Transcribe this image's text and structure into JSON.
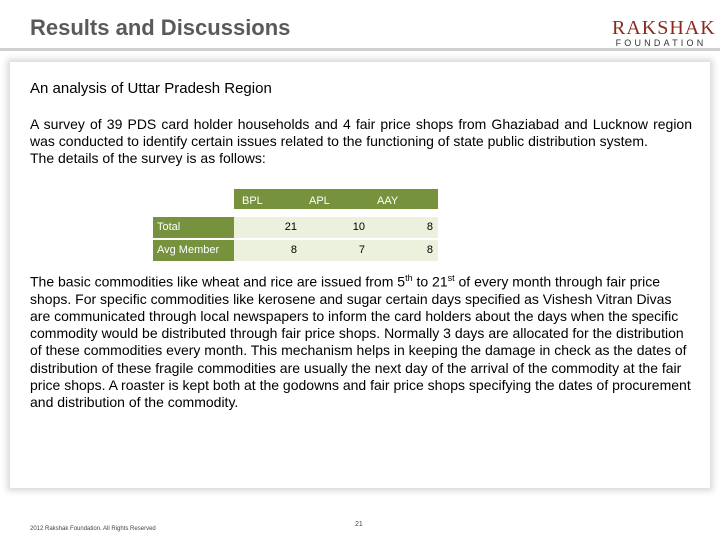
{
  "header": {
    "title": "Results and Discussions",
    "logo_main": "RAKSHAK",
    "logo_sub": "FOUNDATION"
  },
  "content": {
    "subtitle": "An analysis of Uttar Pradesh Region",
    "para1_line1": "A survey of 39 PDS card holder households and 4 fair price shops from Ghaziabad and Lucknow region was conducted to identify certain issues related to the functioning of state public distribution system.",
    "para1_line2": "The details of the survey is as follows:",
    "table": {
      "headers": [
        "BPL",
        "APL",
        "AAY"
      ],
      "rows": [
        {
          "label": "Total",
          "values": [
            "21",
            "10",
            "8"
          ]
        },
        {
          "label": "Avg Member",
          "values": [
            "8",
            "7",
            "8"
          ]
        }
      ]
    },
    "para2": {
      "t1": "The basic commodities like wheat and rice are issued from 5",
      "sup1": "th",
      "t2": " to 21",
      "sup2": "st",
      "t3": " of every month through fair price shops. For specific commodities like kerosene and sugar certain days specified as Vishesh Vitran Divas are communicated through local newspapers to inform the card holders about the days when the specific commodity would be distributed through fair price shops. Normally 3 days are allocated for the distribution of these commodities every month. This mechanism helps in keeping the damage in check as the dates of distribution of these fragile commodities are usually the next day of the arrival of the commodity at the fair price shops. A roaster is kept both at the godowns and fair price shops specifying the dates of procurement and distribution of the commodity."
    }
  },
  "footer": {
    "copyright": "2012 Rakshak Foundation. All Rights Reserved",
    "page_number": "21"
  },
  "colors": {
    "table_header": "#76923c",
    "table_body": "#ebf1dd",
    "title": "#5a5a5a",
    "logo": "#8a2a1d"
  }
}
